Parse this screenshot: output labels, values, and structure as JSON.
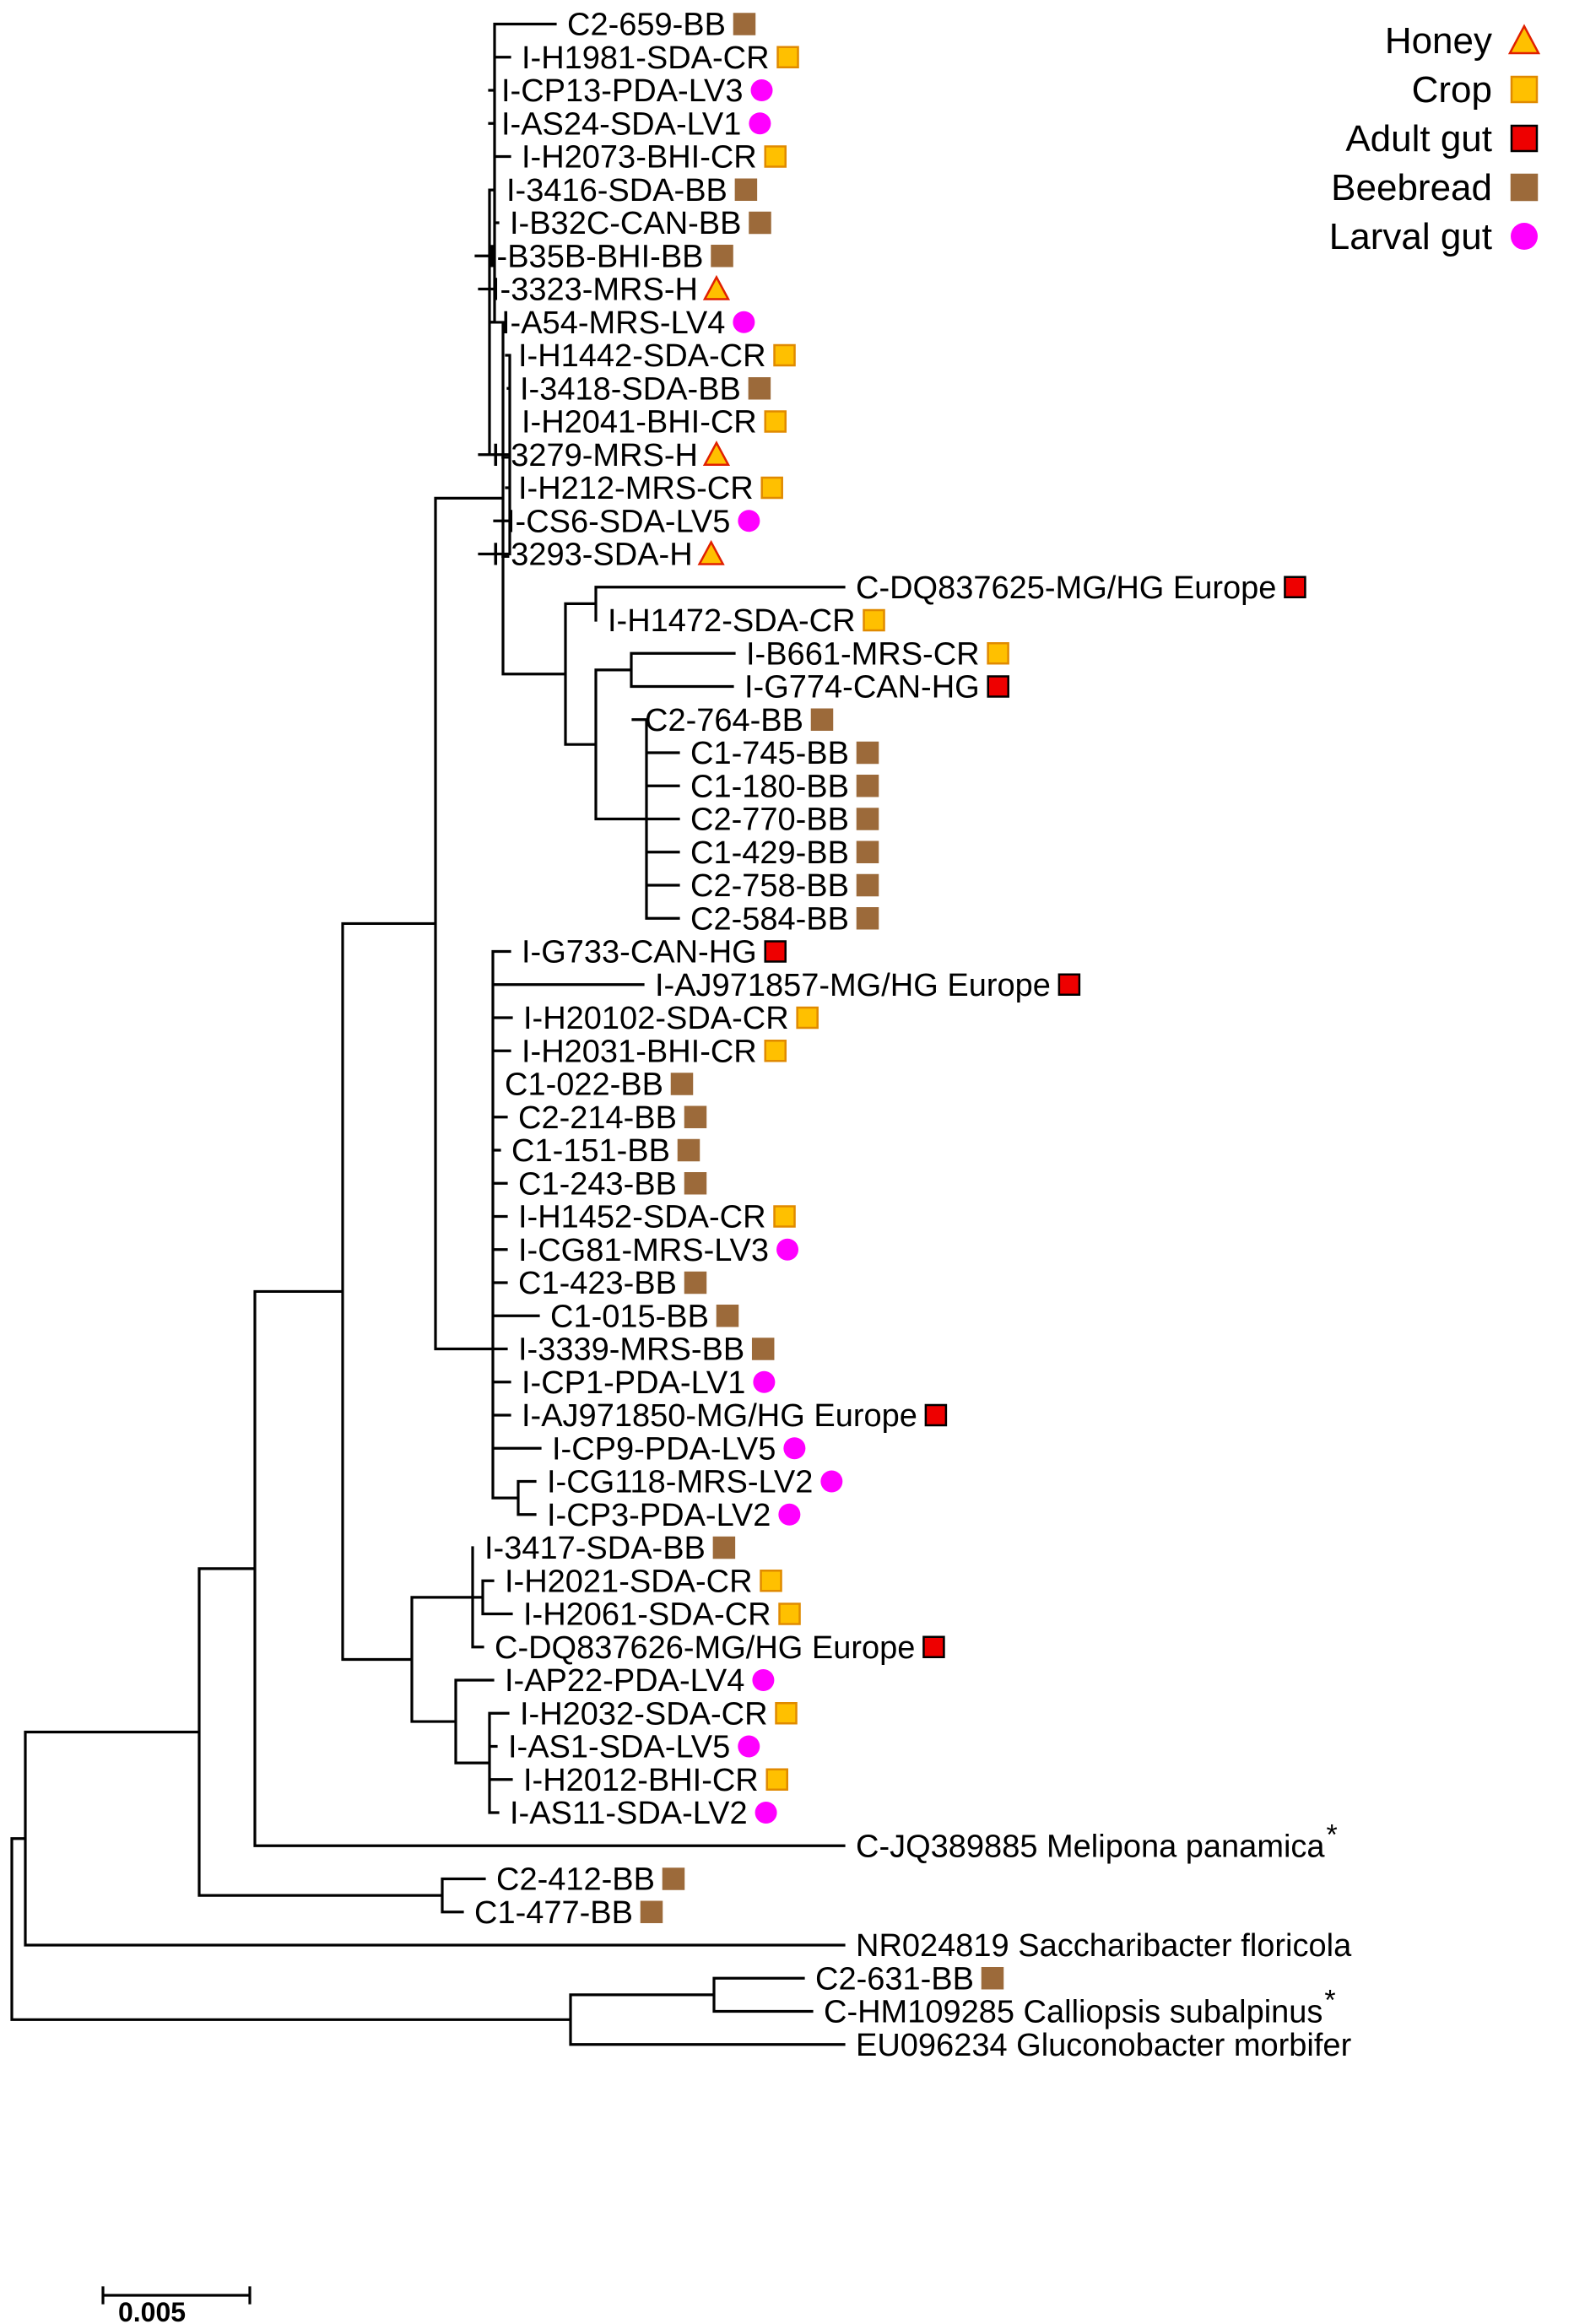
{
  "legend": [
    {
      "label": "Honey",
      "marker": "triangle",
      "color": "#FFC000",
      "stroke": "#E02000"
    },
    {
      "label": "Crop",
      "marker": "square",
      "color": "#FFC000",
      "stroke": "#E08A00"
    },
    {
      "label": "Adult gut",
      "marker": "square",
      "color": "#EE0000",
      "stroke": "#000000"
    },
    {
      "label": "Beebread",
      "marker": "square",
      "color": "#9C6A3A",
      "stroke": "#9C6A3A"
    },
    {
      "label": "Larval gut",
      "marker": "circle",
      "color": "#FF00FF",
      "stroke": "#FF00FF"
    }
  ],
  "scale_bar": {
    "label": "0.005"
  },
  "leaves": [
    {
      "label": "C2-659-BB",
      "source": "Beebread"
    },
    {
      "label": "I-H1981-SDA-CR",
      "source": "Crop"
    },
    {
      "label": "I-CP13-PDA-LV3",
      "source": "Larval gut"
    },
    {
      "label": "I-AS24-SDA-LV1",
      "source": "Larval gut"
    },
    {
      "label": "I-H2073-BHI-CR",
      "source": "Crop"
    },
    {
      "label": "I-3416-SDA-BB",
      "source": "Beebread"
    },
    {
      "label": "I-B32C-CAN-BB",
      "source": "Beebread"
    },
    {
      "label": "I-B35B-BHI-BB",
      "source": "Beebread"
    },
    {
      "label": "I-3323-MRS-H",
      "source": "Honey"
    },
    {
      "label": "I-A54-MRS-LV4",
      "source": "Larval gut"
    },
    {
      "label": "I-H1442-SDA-CR",
      "source": "Crop"
    },
    {
      "label": "I-3418-SDA-BB",
      "source": "Beebread"
    },
    {
      "label": "I-H2041-BHI-CR",
      "source": "Crop"
    },
    {
      "label": "I-3279-MRS-H",
      "source": "Honey"
    },
    {
      "label": "I-H212-MRS-CR",
      "source": "Crop"
    },
    {
      "label": "I-CS6-SDA-LV5",
      "source": "Larval gut"
    },
    {
      "label": "I-3293-SDA-H",
      "source": "Honey"
    },
    {
      "label": "C-DQ837625-MG/HG Europe",
      "source": "Adult gut"
    },
    {
      "label": "I-H1472-SDA-CR",
      "source": "Crop"
    },
    {
      "label": "I-B661-MRS-CR",
      "source": "Crop"
    },
    {
      "label": "I-G774-CAN-HG",
      "source": "Adult gut"
    },
    {
      "label": "C2-764-BB",
      "source": "Beebread"
    },
    {
      "label": "C1-745-BB",
      "source": "Beebread"
    },
    {
      "label": "C1-180-BB",
      "source": "Beebread"
    },
    {
      "label": "C2-770-BB",
      "source": "Beebread"
    },
    {
      "label": "C1-429-BB",
      "source": "Beebread"
    },
    {
      "label": "C2-758-BB",
      "source": "Beebread"
    },
    {
      "label": "C2-584-BB",
      "source": "Beebread"
    },
    {
      "label": "I-G733-CAN-HG",
      "source": "Adult gut"
    },
    {
      "label": "I-AJ971857-MG/HG Europe",
      "source": "Adult gut"
    },
    {
      "label": "I-H20102-SDA-CR",
      "source": "Crop"
    },
    {
      "label": "I-H2031-BHI-CR",
      "source": "Crop"
    },
    {
      "label": "C1-022-BB",
      "source": "Beebread"
    },
    {
      "label": "C2-214-BB",
      "source": "Beebread"
    },
    {
      "label": "C1-151-BB",
      "source": "Beebread"
    },
    {
      "label": "C1-243-BB",
      "source": "Beebread"
    },
    {
      "label": "I-H1452-SDA-CR",
      "source": "Crop"
    },
    {
      "label": "I-CG81-MRS-LV3",
      "source": "Larval gut"
    },
    {
      "label": "C1-423-BB",
      "source": "Beebread"
    },
    {
      "label": "C1-015-BB",
      "source": "Beebread"
    },
    {
      "label": "I-3339-MRS-BB",
      "source": "Beebread"
    },
    {
      "label": "I-CP1-PDA-LV1",
      "source": "Larval gut"
    },
    {
      "label": "I-AJ971850-MG/HG Europe",
      "source": "Adult gut"
    },
    {
      "label": "I-CP9-PDA-LV5",
      "source": "Larval gut"
    },
    {
      "label": "I-CG118-MRS-LV2",
      "source": "Larval gut"
    },
    {
      "label": "I-CP3-PDA-LV2",
      "source": "Larval gut"
    },
    {
      "label": "I-3417-SDA-BB",
      "source": "Beebread"
    },
    {
      "label": "I-H2021-SDA-CR",
      "source": "Crop"
    },
    {
      "label": "I-H2061-SDA-CR",
      "source": "Crop"
    },
    {
      "label": "C-DQ837626-MG/HG Europe",
      "source": "Adult gut"
    },
    {
      "label": "I-AP22-PDA-LV4",
      "source": "Larval gut"
    },
    {
      "label": "I-H2032-SDA-CR",
      "source": "Crop"
    },
    {
      "label": "I-AS1-SDA-LV5",
      "source": "Larval gut"
    },
    {
      "label": "I-H2012-BHI-CR",
      "source": "Crop"
    },
    {
      "label": "I-AS11-SDA-LV2",
      "source": "Larval gut"
    },
    {
      "label": "C-JQ389885 Melipona panamica",
      "source": null,
      "asterisk": "*"
    },
    {
      "label": "C2-412-BB",
      "source": "Beebread"
    },
    {
      "label": "C1-477-BB",
      "source": "Beebread"
    },
    {
      "label": "NR024819 Saccharibacter floricola",
      "source": null
    },
    {
      "label": "C2-631-BB",
      "source": "Beebread"
    },
    {
      "label": "C-HM109285 Calliopsis subalpinus",
      "source": null,
      "asterisk": "*"
    },
    {
      "label": "EU096234 Gluconobacter morbifer",
      "source": null
    }
  ]
}
